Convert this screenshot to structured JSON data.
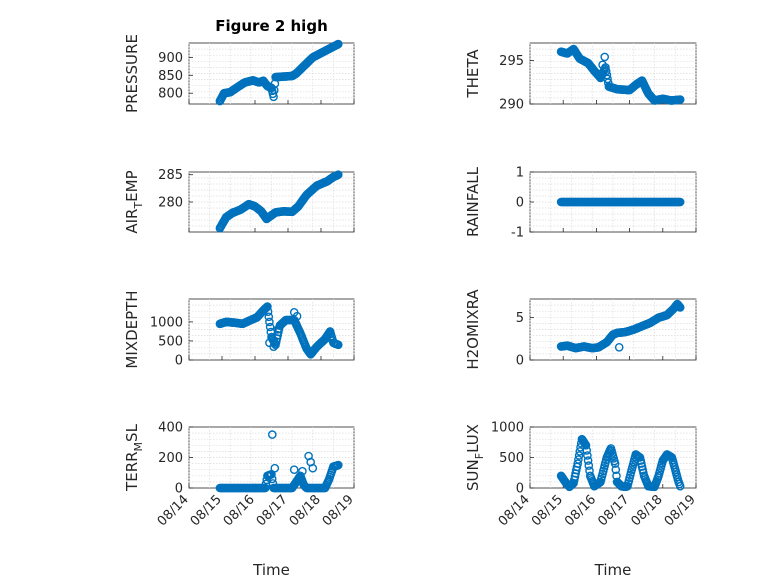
{
  "figure": {
    "title": "Figure 2 high",
    "marker_color": "#0072bd",
    "axis_color": "#262626"
  },
  "chart_data": [
    {
      "id": "pressure",
      "type": "scatter",
      "title": "Figure 2 high",
      "ylabel": "PRESSURE",
      "ylabel_sub": "",
      "xlim": [
        0,
        4
      ],
      "ylim": [
        770,
        940
      ],
      "yticks": [
        800,
        850,
        900
      ],
      "xtick_labels": [],
      "xlabel": "",
      "grid": true,
      "segments": [
        [
          0.75,
          778
        ],
        [
          0.85,
          800
        ],
        [
          1.0,
          803
        ],
        [
          1.15,
          815
        ],
        [
          1.35,
          830
        ],
        [
          1.55,
          836
        ],
        [
          1.7,
          830
        ],
        [
          1.8,
          835
        ],
        [
          1.9,
          820
        ],
        [
          2.0,
          815
        ],
        [
          2.05,
          790
        ],
        [
          2.1,
          845
        ],
        [
          2.5,
          848
        ],
        [
          2.6,
          855
        ],
        [
          3.0,
          900
        ],
        [
          3.3,
          918
        ],
        [
          3.5,
          930
        ],
        [
          3.62,
          937
        ]
      ]
    },
    {
      "id": "theta",
      "type": "scatter",
      "ylabel": "THETA",
      "ylabel_sub": "",
      "xlim": [
        0,
        4
      ],
      "ylim": [
        290,
        297
      ],
      "yticks": [
        290,
        295
      ],
      "xtick_labels": [],
      "xlabel": "",
      "grid": true,
      "segments": [
        [
          0.75,
          296.0
        ],
        [
          0.9,
          295.8
        ],
        [
          1.05,
          296.3
        ],
        [
          1.2,
          295.2
        ],
        [
          1.4,
          294.7
        ],
        [
          1.55,
          293.8
        ],
        [
          1.7,
          293.0
        ],
        [
          1.82,
          294.2
        ],
        [
          1.9,
          292.0
        ],
        [
          2.1,
          291.7
        ],
        [
          2.4,
          291.6
        ],
        [
          2.55,
          292.2
        ],
        [
          2.7,
          292.7
        ],
        [
          2.85,
          291.2
        ],
        [
          3.0,
          290.4
        ],
        [
          3.2,
          290.6
        ],
        [
          3.4,
          290.4
        ],
        [
          3.62,
          290.5
        ]
      ],
      "outliers": [
        [
          1.8,
          295.4
        ],
        [
          1.75,
          294.5
        ]
      ]
    },
    {
      "id": "air_temp",
      "type": "scatter",
      "ylabel": "AIR",
      "ylabel_sub": "T",
      "ylabel_suffix": "EMP",
      "xlim": [
        0,
        4
      ],
      "ylim": [
        274.5,
        285.5
      ],
      "yticks": [
        280,
        285
      ],
      "xtick_labels": [],
      "xlabel": "",
      "grid": true,
      "segments": [
        [
          0.75,
          275.2
        ],
        [
          0.9,
          277.2
        ],
        [
          1.05,
          278.0
        ],
        [
          1.25,
          278.6
        ],
        [
          1.45,
          279.6
        ],
        [
          1.6,
          279.2
        ],
        [
          1.75,
          278.3
        ],
        [
          1.88,
          276.9
        ],
        [
          1.95,
          277.3
        ],
        [
          2.1,
          278.1
        ],
        [
          2.3,
          278.3
        ],
        [
          2.5,
          278.2
        ],
        [
          2.65,
          279.2
        ],
        [
          2.85,
          281.3
        ],
        [
          3.1,
          283.0
        ],
        [
          3.35,
          283.8
        ],
        [
          3.5,
          284.6
        ],
        [
          3.62,
          285.0
        ]
      ]
    },
    {
      "id": "rainfall",
      "type": "scatter",
      "ylabel": "RAINFALL",
      "ylabel_sub": "",
      "xlim": [
        0,
        4
      ],
      "ylim": [
        -1,
        1
      ],
      "yticks": [
        -1,
        0,
        1
      ],
      "xtick_labels": [],
      "xlabel": "",
      "grid": true,
      "segments": [
        [
          0.75,
          0
        ],
        [
          3.62,
          0
        ]
      ]
    },
    {
      "id": "mixdepth",
      "type": "scatter",
      "ylabel": "MIXDEPTH",
      "ylabel_sub": "",
      "xlim": [
        0,
        4
      ],
      "ylim": [
        0,
        1600
      ],
      "yticks": [
        0,
        500,
        1000
      ],
      "xtick_labels": [],
      "xlabel": "",
      "grid": true,
      "segments": [
        [
          0.75,
          950
        ],
        [
          0.9,
          1000
        ],
        [
          1.1,
          980
        ],
        [
          1.3,
          950
        ],
        [
          1.5,
          1050
        ],
        [
          1.65,
          1120
        ],
        [
          1.8,
          1300
        ],
        [
          1.9,
          1400
        ],
        [
          1.95,
          1000
        ],
        [
          2.0,
          600
        ],
        [
          2.1,
          400
        ],
        [
          2.2,
          900
        ],
        [
          2.35,
          1050
        ],
        [
          2.55,
          1050
        ],
        [
          2.7,
          700
        ],
        [
          2.85,
          300
        ],
        [
          2.95,
          150
        ],
        [
          3.1,
          350
        ],
        [
          3.3,
          550
        ],
        [
          3.42,
          750
        ],
        [
          3.5,
          450
        ],
        [
          3.62,
          400
        ]
      ],
      "outliers": [
        [
          1.95,
          450
        ],
        [
          2.05,
          350
        ],
        [
          2.15,
          800
        ],
        [
          2.55,
          1250
        ],
        [
          2.62,
          1150
        ]
      ]
    },
    {
      "id": "h2omixra",
      "type": "scatter",
      "ylabel": "H2OMIXRA",
      "ylabel_sub": "",
      "xlim": [
        0,
        4
      ],
      "ylim": [
        0,
        7.2
      ],
      "yticks": [
        0,
        5
      ],
      "xtick_labels": [],
      "xlabel": "",
      "grid": true,
      "segments": [
        [
          0.75,
          1.6
        ],
        [
          0.9,
          1.7
        ],
        [
          1.1,
          1.4
        ],
        [
          1.3,
          1.6
        ],
        [
          1.5,
          1.4
        ],
        [
          1.65,
          1.5
        ],
        [
          1.85,
          2.1
        ],
        [
          2.0,
          3.0
        ],
        [
          2.1,
          3.2
        ],
        [
          2.3,
          3.3
        ],
        [
          2.5,
          3.6
        ],
        [
          2.7,
          4.0
        ],
        [
          2.9,
          4.4
        ],
        [
          3.1,
          5.0
        ],
        [
          3.3,
          5.3
        ],
        [
          3.45,
          6.0
        ],
        [
          3.55,
          6.6
        ],
        [
          3.62,
          6.2
        ]
      ],
      "outliers": [
        [
          2.15,
          1.5
        ]
      ]
    },
    {
      "id": "terr_msl",
      "type": "scatter",
      "ylabel": "TERR",
      "ylabel_sub": "M",
      "ylabel_suffix": "SL",
      "xlim": [
        0,
        4
      ],
      "ylim": [
        0,
        400
      ],
      "yticks": [
        0,
        200,
        400
      ],
      "xtick_labels": [
        "08/14",
        "08/15",
        "08/16",
        "08/17",
        "08/18",
        "08/19"
      ],
      "xlabel": "Time",
      "grid": true,
      "segments": [
        [
          0.75,
          0
        ],
        [
          1.85,
          0
        ],
        [
          1.9,
          80
        ],
        [
          2.0,
          90
        ],
        [
          2.05,
          0
        ],
        [
          2.5,
          0
        ],
        [
          2.6,
          40
        ],
        [
          2.7,
          80
        ],
        [
          2.78,
          20
        ],
        [
          2.85,
          0
        ],
        [
          3.3,
          0
        ],
        [
          3.4,
          60
        ],
        [
          3.5,
          140
        ],
        [
          3.62,
          150
        ]
      ],
      "outliers": [
        [
          2.02,
          350
        ],
        [
          2.08,
          130
        ],
        [
          2.55,
          120
        ],
        [
          2.75,
          110
        ],
        [
          2.9,
          210
        ],
        [
          2.95,
          170
        ],
        [
          3.0,
          130
        ]
      ]
    },
    {
      "id": "sun_flux",
      "type": "scatter",
      "ylabel": "SUN",
      "ylabel_sub": "F",
      "ylabel_suffix": "LUX",
      "xlim": [
        0,
        4
      ],
      "ylim": [
        0,
        1000
      ],
      "yticks": [
        0,
        500,
        1000
      ],
      "xtick_labels": [
        "08/14",
        "08/15",
        "08/16",
        "08/17",
        "08/18",
        "08/19"
      ],
      "xlabel": "Time",
      "grid": true,
      "segments": [
        [
          0.75,
          200
        ],
        [
          0.85,
          100
        ],
        [
          0.95,
          20
        ],
        [
          1.05,
          80
        ],
        [
          1.15,
          400
        ],
        [
          1.25,
          800
        ],
        [
          1.35,
          700
        ],
        [
          1.45,
          200
        ],
        [
          1.55,
          30
        ],
        [
          1.7,
          100
        ],
        [
          1.85,
          500
        ],
        [
          1.95,
          650
        ],
        [
          2.05,
          400
        ],
        [
          2.1,
          100
        ],
        [
          2.2,
          30
        ],
        [
          2.3,
          20
        ],
        [
          2.35,
          30
        ],
        [
          2.45,
          300
        ],
        [
          2.55,
          550
        ],
        [
          2.65,
          500
        ],
        [
          2.75,
          200
        ],
        [
          2.85,
          30
        ],
        [
          3.0,
          20
        ],
        [
          3.1,
          200
        ],
        [
          3.2,
          450
        ],
        [
          3.3,
          550
        ],
        [
          3.42,
          500
        ],
        [
          3.5,
          300
        ],
        [
          3.58,
          100
        ],
        [
          3.62,
          30
        ]
      ]
    }
  ]
}
